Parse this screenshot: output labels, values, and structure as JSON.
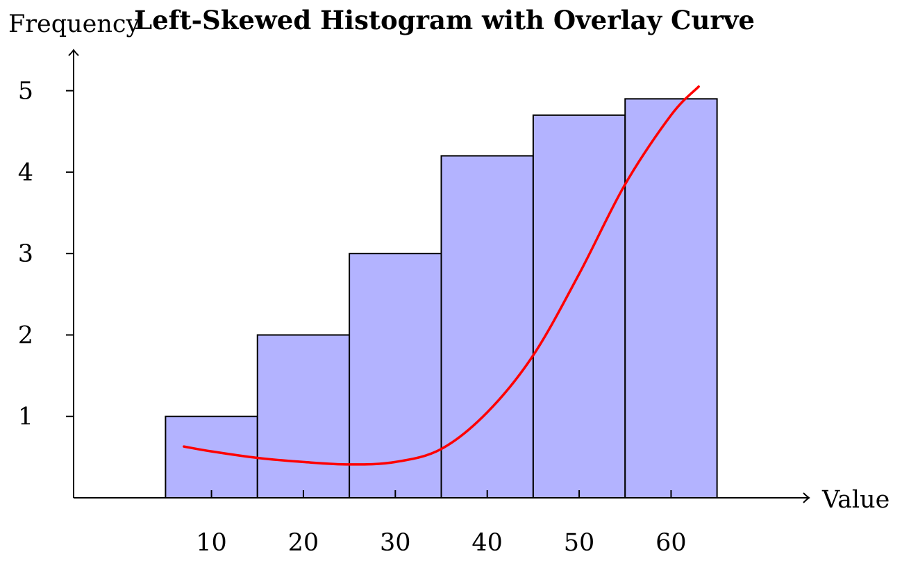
{
  "chart_data": {
    "type": "bar",
    "title": "Left-Skewed Histogram with Overlay Curve",
    "xlabel": "Value",
    "ylabel": "Frequency",
    "bins": [
      {
        "x0": 5,
        "x1": 15,
        "value": 1
      },
      {
        "x0": 15,
        "x1": 25,
        "value": 2
      },
      {
        "x0": 25,
        "x1": 35,
        "value": 3
      },
      {
        "x0": 35,
        "x1": 45,
        "value": 4.2
      },
      {
        "x0": 45,
        "x1": 55,
        "value": 4.7
      },
      {
        "x0": 55,
        "x1": 65,
        "value": 4.9
      }
    ],
    "x_ticks": [
      10,
      20,
      30,
      40,
      50,
      60
    ],
    "y_ticks": [
      1,
      2,
      3,
      4,
      5
    ],
    "xlim": [
      -5,
      75
    ],
    "ylim": [
      0,
      5.5
    ],
    "overlay_curve": {
      "x": [
        7,
        10,
        15,
        20,
        25,
        30,
        35,
        40,
        45,
        50,
        55,
        60,
        63
      ],
      "y": [
        0.63,
        0.57,
        0.49,
        0.44,
        0.41,
        0.44,
        0.6,
        1.05,
        1.75,
        2.75,
        3.85,
        4.7,
        5.05
      ]
    },
    "bar_color": "#b3b3ff",
    "curve_color": "#ff0000",
    "grid": false
  }
}
